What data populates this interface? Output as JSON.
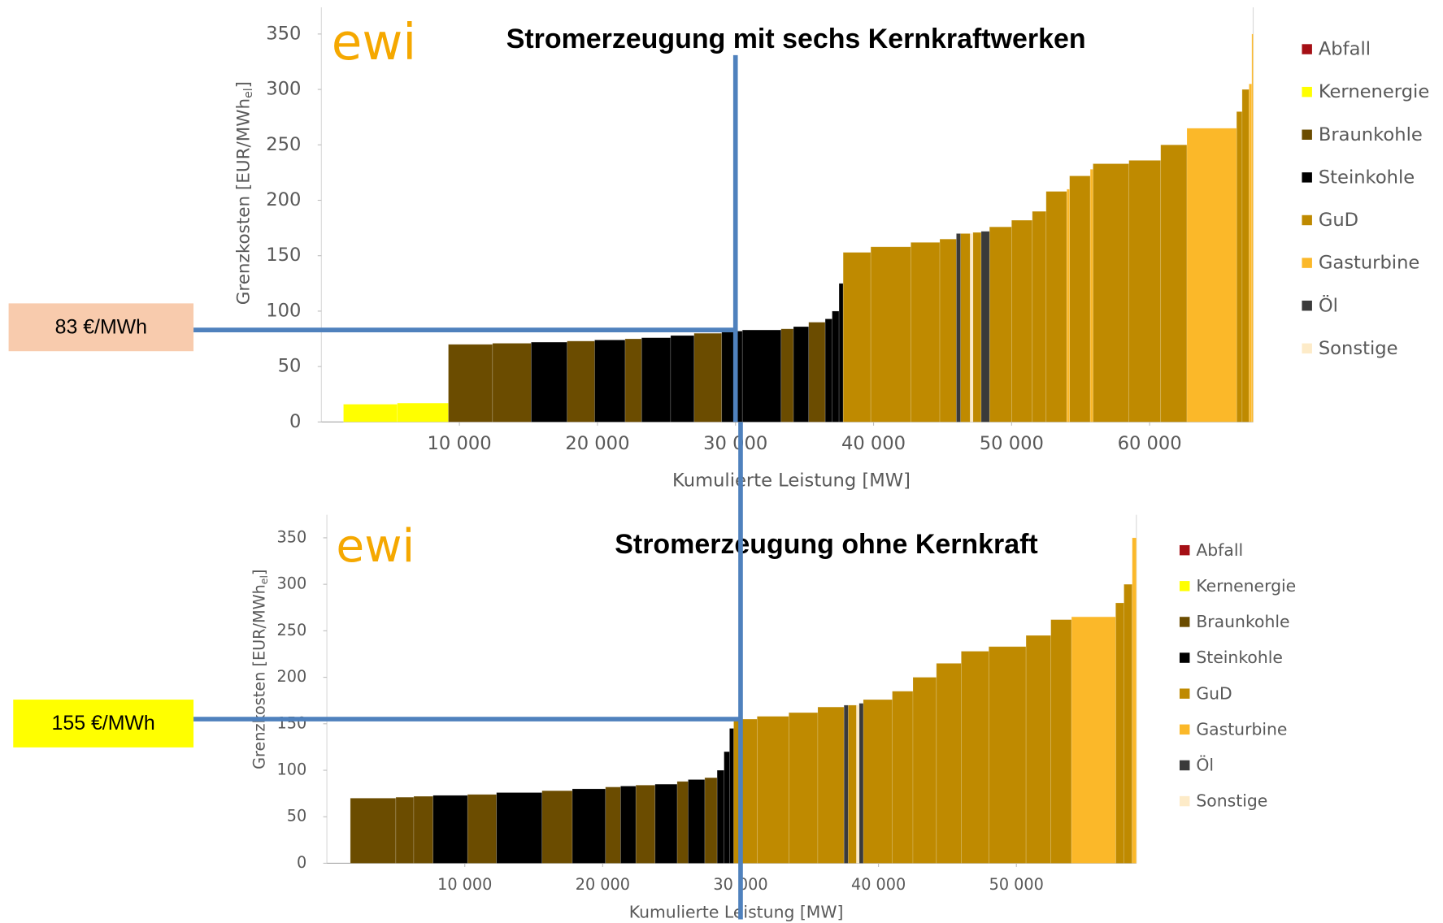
{
  "chart_data": [
    {
      "type": "bar",
      "title": "Stromerzeugung mit sechs Kernkraftwerken",
      "logo": "ewi",
      "x_label": "Kumulierte Leistung [MW]",
      "y_label": {
        "text": "Grenzkosten [EUR/MWh",
        "sub": "el",
        "close": "]"
      },
      "xlim": [
        0,
        67500
      ],
      "ylim": [
        0,
        350
      ],
      "xticks": [
        {
          "value": 10000,
          "label": "10 000"
        },
        {
          "value": 20000,
          "label": "20 000"
        },
        {
          "value": 30000,
          "label": "30 000"
        },
        {
          "value": 40000,
          "label": "40 000"
        },
        {
          "value": 50000,
          "label": "50 000"
        },
        {
          "value": 60000,
          "label": "60 000"
        }
      ],
      "yticks": [
        0,
        50,
        100,
        150,
        200,
        250,
        300,
        350
      ],
      "series": [
        {
          "name": "Abfall",
          "color": "#a50f15",
          "x0": [],
          "x1": [],
          "values": []
        },
        {
          "name": "Kernenergie",
          "color": "#ffff00",
          "x0": [
            1600,
            5500
          ],
          "x1": [
            5500,
            9200
          ],
          "values": [
            16,
            17
          ]
        },
        {
          "name": "Braunkohle",
          "color": "#6b4c00",
          "x0": [
            9200,
            12400,
            17800,
            22000,
            27000,
            33300,
            35300
          ],
          "x1": [
            12400,
            15200,
            19800,
            23200,
            29000,
            34200,
            36500
          ],
          "values": [
            70,
            71,
            73,
            75,
            80,
            84,
            90
          ]
        },
        {
          "name": "Steinkohle",
          "color": "#000000",
          "x0": [
            15200,
            19800,
            23200,
            25300,
            29000,
            30500,
            34200,
            36500,
            37000,
            37500
          ],
          "x1": [
            17800,
            22000,
            25300,
            27000,
            30500,
            33300,
            35300,
            37000,
            37500,
            37800
          ],
          "values": [
            72,
            74,
            76,
            78,
            82,
            83,
            86,
            93,
            100,
            125
          ]
        },
        {
          "name": "GuD",
          "color": "#bf8a00",
          "x0": [
            37800,
            39800,
            42700,
            44800,
            46300,
            47200,
            48400,
            50000,
            51500,
            52500,
            54200,
            55900,
            58500,
            60800,
            66300,
            66700
          ],
          "x1": [
            39800,
            42700,
            44800,
            46000,
            47000,
            47800,
            50000,
            51500,
            52500,
            54000,
            55700,
            58500,
            60800,
            62700,
            66700,
            67200
          ],
          "values": [
            153,
            158,
            162,
            165,
            170,
            171,
            176,
            182,
            190,
            208,
            222,
            233,
            236,
            250,
            280,
            300
          ]
        },
        {
          "name": "Gasturbine",
          "color": "#fbb829",
          "x0": [
            54000,
            55700,
            62700,
            67200,
            67400
          ],
          "x1": [
            54200,
            55900,
            66300,
            67400,
            67500
          ],
          "values": [
            210,
            228,
            265,
            305,
            350
          ]
        },
        {
          "name": "Öl",
          "color": "#3a3a3a",
          "x0": [
            46000,
            47800
          ],
          "x1": [
            46300,
            48400
          ],
          "values": [
            170,
            172
          ]
        },
        {
          "name": "Sonstige",
          "color": "#fdebc8",
          "x0": [
            47000
          ],
          "x1": [
            47200
          ],
          "values": [
            170
          ]
        }
      ],
      "annotation": {
        "label": "83 €/MWh",
        "value": 83,
        "x": 30000,
        "box_color": "#f8cbad",
        "line_color": "#4f81bd"
      }
    },
    {
      "type": "bar",
      "title": "Stromerzeugung ohne Kernkraft",
      "logo": "ewi",
      "x_label": "Kumulierte Leistung [MW]",
      "y_label": {
        "text": "Grenzkosten [EUR/MWh",
        "sub": "el",
        "close": "]"
      },
      "xlim": [
        0,
        58700
      ],
      "ylim": [
        0,
        350
      ],
      "xticks": [
        {
          "value": 10000,
          "label": "10 000"
        },
        {
          "value": 20000,
          "label": "20 000"
        },
        {
          "value": 30000,
          "label": "30 000"
        },
        {
          "value": 40000,
          "label": "40 000"
        },
        {
          "value": 50000,
          "label": "50 000"
        }
      ],
      "yticks": [
        0,
        50,
        100,
        150,
        200,
        250,
        300,
        350
      ],
      "series": [
        {
          "name": "Abfall",
          "color": "#a50f15",
          "x0": [],
          "x1": [],
          "values": []
        },
        {
          "name": "Kernenergie",
          "color": "#ffff00",
          "x0": [],
          "x1": [],
          "values": []
        },
        {
          "name": "Braunkohle",
          "color": "#6b4c00",
          "x0": [
            1700,
            5000,
            6300,
            10200,
            15600,
            20200,
            22400,
            25400,
            27400
          ],
          "x1": [
            5000,
            6300,
            7700,
            12300,
            17800,
            21300,
            23800,
            26200,
            28300
          ],
          "values": [
            70,
            71,
            72,
            74,
            78,
            82,
            84,
            88,
            92
          ]
        },
        {
          "name": "Steinkohle",
          "color": "#000000",
          "x0": [
            7700,
            12300,
            17800,
            21300,
            23800,
            26200,
            28300,
            28800,
            29200
          ],
          "x1": [
            10200,
            15600,
            20200,
            22400,
            25400,
            27400,
            28800,
            29200,
            29500
          ],
          "values": [
            73,
            76,
            80,
            83,
            85,
            90,
            100,
            120,
            145
          ]
        },
        {
          "name": "GuD",
          "color": "#bf8a00",
          "x0": [
            29500,
            31200,
            33500,
            35600,
            37800,
            38900,
            41000,
            42500,
            44200,
            46000,
            48000,
            50700,
            52500,
            57200,
            57800
          ],
          "x1": [
            31200,
            33500,
            35600,
            37500,
            38400,
            41000,
            42500,
            44200,
            46000,
            48000,
            50700,
            52500,
            54000,
            57800,
            58400
          ],
          "values": [
            155,
            158,
            162,
            168,
            170,
            176,
            185,
            200,
            215,
            228,
            233,
            245,
            262,
            280,
            300
          ]
        },
        {
          "name": "Gasturbine",
          "color": "#fbb829",
          "x0": [
            54000,
            58400
          ],
          "x1": [
            57200,
            58700
          ],
          "values": [
            265,
            350
          ]
        },
        {
          "name": "Öl",
          "color": "#3a3a3a",
          "x0": [
            37500,
            38600
          ],
          "x1": [
            37800,
            38900
          ],
          "values": [
            170,
            172
          ]
        },
        {
          "name": "Sonstige",
          "color": "#fdebc8",
          "x0": [
            38400
          ],
          "x1": [
            38600
          ],
          "values": [
            170
          ]
        }
      ],
      "annotation": {
        "label": "155 €/MWh",
        "value": 155,
        "x": 30000,
        "box_color": "#ffff00",
        "line_color": "#4f81bd"
      }
    }
  ]
}
